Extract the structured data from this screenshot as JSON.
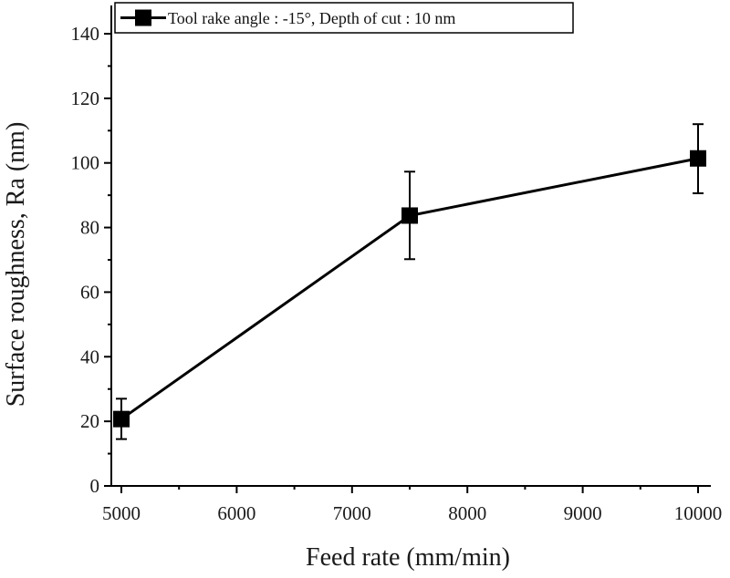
{
  "chart_data": {
    "type": "line",
    "title": "",
    "xlabel": "Feed rate (mm/min)",
    "ylabel": "Surface roughness, Ra (nm)",
    "xlim": [
      4950,
      10120
    ],
    "ylim": [
      0,
      150
    ],
    "x_ticks": [
      5000,
      6000,
      7000,
      8000,
      9000,
      10000
    ],
    "y_ticks": [
      0,
      20,
      40,
      60,
      80,
      100,
      120,
      140
    ],
    "x_minor_step": 500,
    "y_minor_step": 10,
    "grid": false,
    "legend_position": "top-left",
    "series": [
      {
        "name": "Tool rake angle : -15°, Depth of cut : 10 nm",
        "marker": "square",
        "line_color": "#000000",
        "points": [
          {
            "x": 5000,
            "y": 20.7,
            "err_low": 14.5,
            "err_high": 27.0
          },
          {
            "x": 7500,
            "y": 83.7,
            "err_low": 70.2,
            "err_high": 97.3
          },
          {
            "x": 10000,
            "y": 101.4,
            "err_low": 90.6,
            "err_high": 112.0
          }
        ]
      }
    ]
  }
}
